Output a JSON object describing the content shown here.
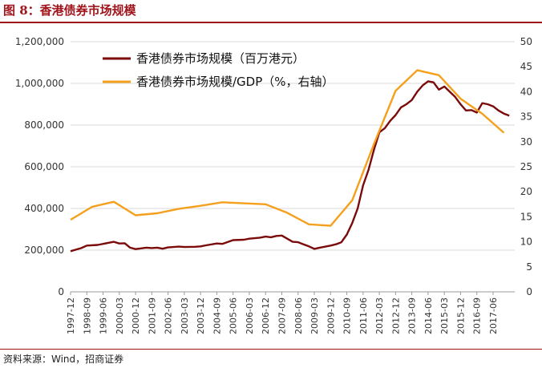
{
  "figure": {
    "title": "图 8：香港债券市场规模",
    "source": "资料来源：Wind，招商证券"
  },
  "chart_data": {
    "type": "line",
    "title": "",
    "xlabel": "",
    "ylabel": "",
    "x_ticks": [
      "1997-12",
      "1998-09",
      "1999-06",
      "2000-03",
      "2000-12",
      "2001-09",
      "2002-06",
      "2003-03",
      "2003-12",
      "2004-09",
      "2005-06",
      "2006-03",
      "2006-12",
      "2007-09",
      "2008-06",
      "2009-03",
      "2009-12",
      "2010-09",
      "2011-06",
      "2012-03",
      "2012-12",
      "2013-09",
      "2014-06",
      "2015-03",
      "2015-12",
      "2016-09",
      "2017-06"
    ],
    "y_left": {
      "range": [
        0,
        1200000
      ],
      "ticks": [
        "0",
        "200,000",
        "400,000",
        "600,000",
        "800,000",
        "1,000,000",
        "1,200,000"
      ]
    },
    "y_right": {
      "range": [
        0,
        50
      ],
      "ticks": [
        "0",
        "5",
        "10",
        "15",
        "20",
        "25",
        "30",
        "35",
        "40",
        "45",
        "50"
      ]
    },
    "legend_position": "top-left",
    "grid": "horizontal",
    "series": [
      {
        "name": "香港债券市场规模（百万港元）",
        "axis": "left",
        "color": "#7b0a0a",
        "points": [
          [
            "1997-12",
            195000
          ],
          [
            "1998-06",
            210000
          ],
          [
            "1998-09",
            222000
          ],
          [
            "1999-03",
            225000
          ],
          [
            "1999-06",
            230000
          ],
          [
            "1999-12",
            240000
          ],
          [
            "2000-03",
            232000
          ],
          [
            "2000-06",
            233000
          ],
          [
            "2000-09",
            212000
          ],
          [
            "2000-12",
            205000
          ],
          [
            "2001-06",
            212000
          ],
          [
            "2001-09",
            210000
          ],
          [
            "2001-12",
            212000
          ],
          [
            "2002-03",
            207000
          ],
          [
            "2002-06",
            213000
          ],
          [
            "2002-12",
            217000
          ],
          [
            "2003-03",
            215000
          ],
          [
            "2003-09",
            216000
          ],
          [
            "2003-12",
            218000
          ],
          [
            "2004-03",
            223000
          ],
          [
            "2004-09",
            232000
          ],
          [
            "2004-12",
            230000
          ],
          [
            "2005-06",
            248000
          ],
          [
            "2005-12",
            250000
          ],
          [
            "2006-03",
            255000
          ],
          [
            "2006-09",
            260000
          ],
          [
            "2006-12",
            265000
          ],
          [
            "2007-03",
            262000
          ],
          [
            "2007-06",
            268000
          ],
          [
            "2007-09",
            270000
          ],
          [
            "2007-12",
            255000
          ],
          [
            "2008-03",
            240000
          ],
          [
            "2008-06",
            238000
          ],
          [
            "2008-09",
            228000
          ],
          [
            "2008-12",
            218000
          ],
          [
            "2009-03",
            206000
          ],
          [
            "2009-06",
            212000
          ],
          [
            "2009-12",
            222000
          ],
          [
            "2010-03",
            228000
          ],
          [
            "2010-06",
            238000
          ],
          [
            "2010-09",
            275000
          ],
          [
            "2010-12",
            330000
          ],
          [
            "2011-03",
            400000
          ],
          [
            "2011-06",
            510000
          ],
          [
            "2011-09",
            585000
          ],
          [
            "2011-12",
            680000
          ],
          [
            "2012-03",
            765000
          ],
          [
            "2012-06",
            785000
          ],
          [
            "2012-09",
            820000
          ],
          [
            "2012-12",
            848000
          ],
          [
            "2013-03",
            885000
          ],
          [
            "2013-06",
            900000
          ],
          [
            "2013-09",
            920000
          ],
          [
            "2013-12",
            960000
          ],
          [
            "2014-03",
            990000
          ],
          [
            "2014-06",
            1010000
          ],
          [
            "2014-09",
            1005000
          ],
          [
            "2014-12",
            970000
          ],
          [
            "2015-03",
            985000
          ],
          [
            "2015-06",
            960000
          ],
          [
            "2015-09",
            935000
          ],
          [
            "2015-12",
            900000
          ],
          [
            "2016-03",
            870000
          ],
          [
            "2016-06",
            872000
          ],
          [
            "2016-09",
            860000
          ],
          [
            "2016-12",
            905000
          ],
          [
            "2017-03",
            900000
          ],
          [
            "2017-06",
            890000
          ],
          [
            "2017-09",
            870000
          ],
          [
            "2017-12",
            855000
          ],
          [
            "2018-03",
            845000
          ]
        ]
      },
      {
        "name": "香港债券市场规模/GDP（%，右轴）",
        "axis": "right",
        "color": "#f4a01c",
        "points": [
          [
            "1997-12",
            14.4
          ],
          [
            "1998-12",
            17.0
          ],
          [
            "1999-12",
            18.0
          ],
          [
            "2000-12",
            15.3
          ],
          [
            "2001-12",
            15.7
          ],
          [
            "2002-12",
            16.6
          ],
          [
            "2003-12",
            17.2
          ],
          [
            "2004-12",
            17.9
          ],
          [
            "2005-12",
            17.7
          ],
          [
            "2006-12",
            17.5
          ],
          [
            "2007-12",
            15.8
          ],
          [
            "2008-12",
            13.5
          ],
          [
            "2009-12",
            13.2
          ],
          [
            "2010-12",
            18.3
          ],
          [
            "2011-12",
            29.5
          ],
          [
            "2012-12",
            40.2
          ],
          [
            "2013-12",
            44.3
          ],
          [
            "2014-12",
            43.3
          ],
          [
            "2015-12",
            38.6
          ],
          [
            "2016-12",
            35.6
          ],
          [
            "2017-12",
            31.8
          ]
        ]
      }
    ]
  }
}
